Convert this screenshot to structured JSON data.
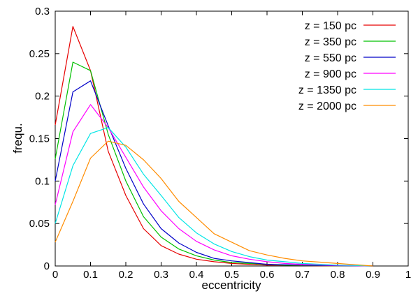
{
  "chart_data": {
    "type": "line",
    "title": "",
    "xlabel": "eccentricity",
    "ylabel": "frequ.",
    "xlim": [
      0,
      1
    ],
    "ylim": [
      0,
      0.3
    ],
    "grid": false,
    "legend_position": "top-right",
    "x_ticks": [
      "0",
      "0.1",
      "0.2",
      "0.3",
      "0.4",
      "0.5",
      "0.6",
      "0.7",
      "0.8",
      "0.9",
      "1"
    ],
    "y_ticks": [
      "0",
      "0.05",
      "0.1",
      "0.15",
      "0.2",
      "0.25",
      "0.3"
    ],
    "x": [
      0,
      0.05,
      0.1,
      0.15,
      0.2,
      0.25,
      0.3,
      0.35,
      0.4,
      0.45,
      0.5,
      0.55,
      0.6,
      0.65,
      0.7,
      0.75,
      0.8,
      0.85,
      0.9
    ],
    "series": [
      {
        "name": "z = 150 pc",
        "color": "#e60000",
        "values": [
          0.166,
          0.282,
          0.23,
          0.135,
          0.083,
          0.044,
          0.024,
          0.014,
          0.008,
          0.005,
          0.003,
          0.002,
          0.001,
          0.001,
          0.0005,
          0.0003,
          0.0002,
          0.0001,
          0.0
        ]
      },
      {
        "name": "z = 350 pc",
        "color": "#00c000",
        "values": [
          0.126,
          0.24,
          0.23,
          0.155,
          0.1,
          0.058,
          0.034,
          0.02,
          0.012,
          0.007,
          0.004,
          0.003,
          0.002,
          0.001,
          0.0007,
          0.0005,
          0.0003,
          0.0002,
          0.0
        ]
      },
      {
        "name": "z = 550 pc",
        "color": "#0000c8",
        "values": [
          0.1,
          0.205,
          0.218,
          0.165,
          0.115,
          0.073,
          0.044,
          0.027,
          0.016,
          0.009,
          0.006,
          0.004,
          0.002,
          0.0015,
          0.001,
          0.0007,
          0.0004,
          0.0002,
          0.0
        ]
      },
      {
        "name": "z = 900 pc",
        "color": "#ff00ff",
        "values": [
          0.072,
          0.158,
          0.19,
          0.163,
          0.128,
          0.093,
          0.065,
          0.044,
          0.029,
          0.019,
          0.012,
          0.008,
          0.005,
          0.003,
          0.002,
          0.0012,
          0.0007,
          0.0004,
          0.0
        ]
      },
      {
        "name": "z = 1350 pc",
        "color": "#00e5e5",
        "values": [
          0.05,
          0.118,
          0.156,
          0.163,
          0.14,
          0.108,
          0.083,
          0.057,
          0.039,
          0.026,
          0.017,
          0.011,
          0.007,
          0.005,
          0.003,
          0.002,
          0.001,
          0.0006,
          0.0
        ]
      },
      {
        "name": "z = 2000 pc",
        "color": "#ff8c00",
        "values": [
          0.028,
          0.076,
          0.127,
          0.147,
          0.142,
          0.125,
          0.103,
          0.076,
          0.057,
          0.038,
          0.028,
          0.018,
          0.013,
          0.009,
          0.006,
          0.0045,
          0.003,
          0.0015,
          0.0
        ]
      }
    ]
  }
}
